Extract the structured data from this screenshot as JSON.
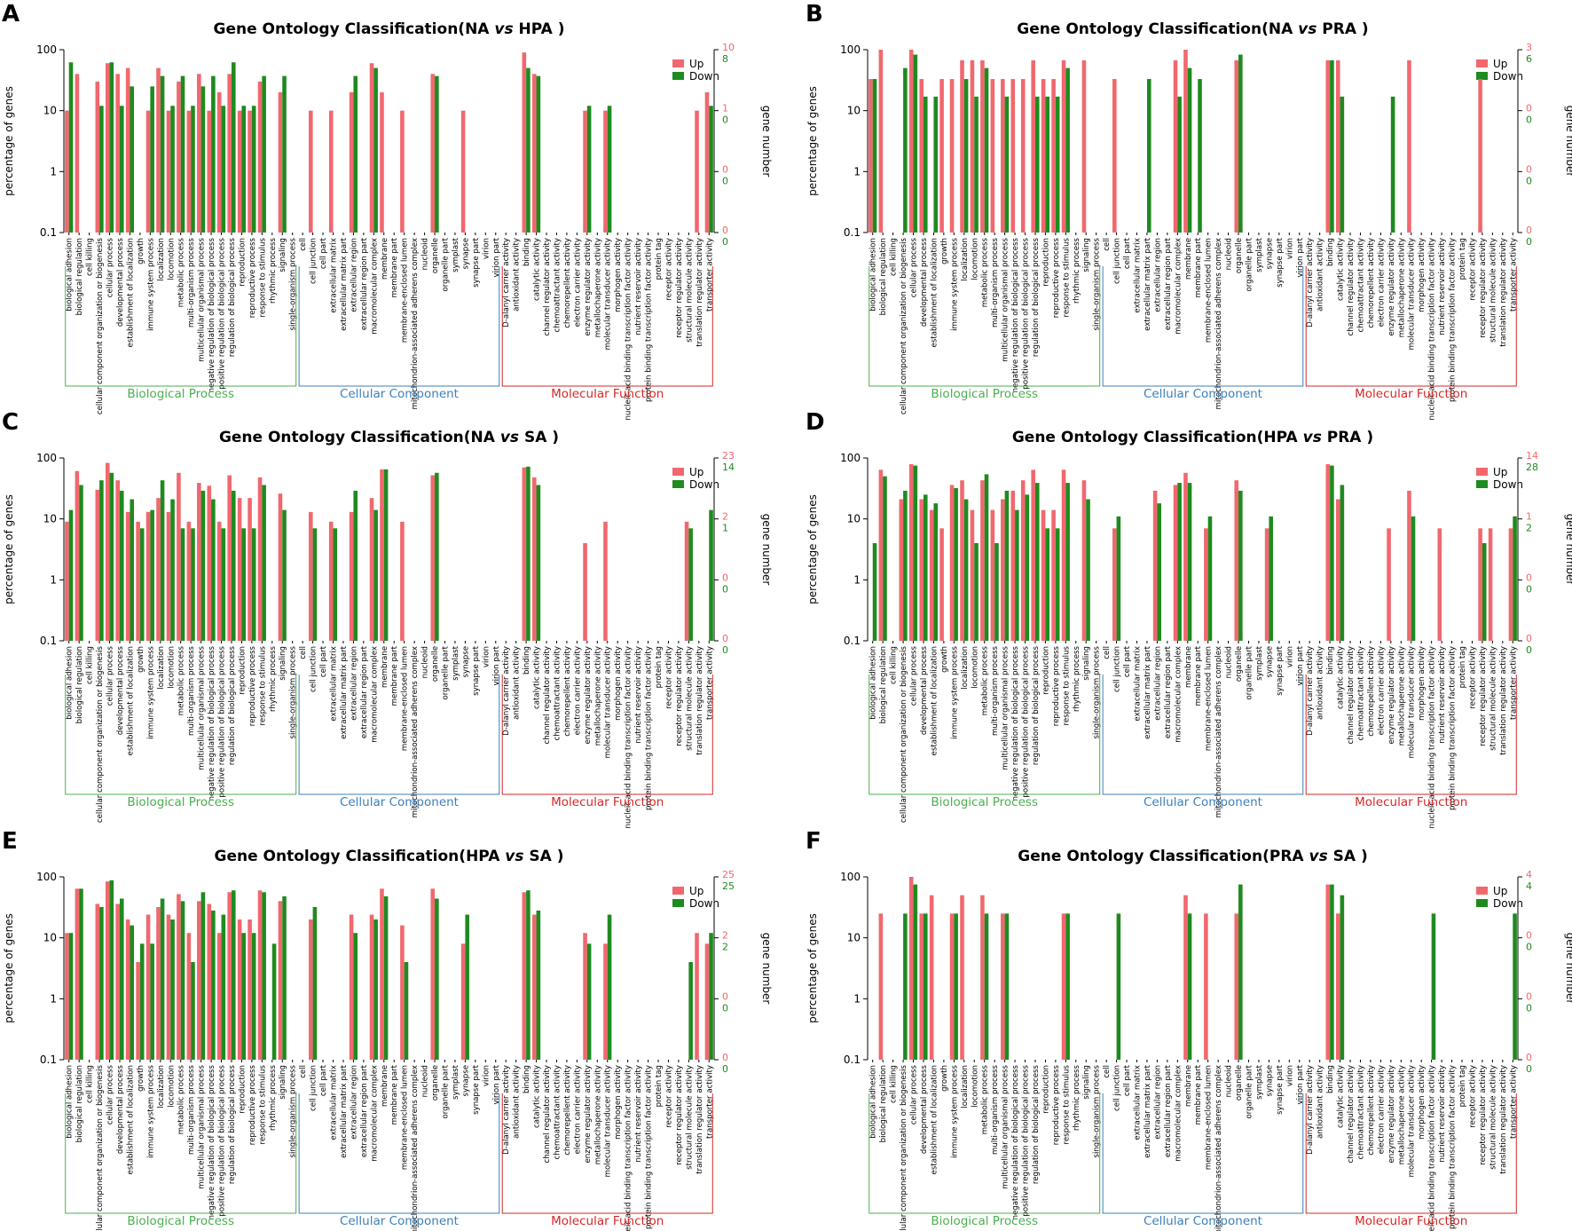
{
  "figure": {
    "colors": {
      "up": "#F0686E",
      "down": "#1F8A1F",
      "bp": "#4CAF50",
      "cc": "#3D7FB8",
      "mf": "#D62728",
      "axis": "#000000"
    },
    "y_axis_label": "percentage of genes",
    "y2_axis_label": "gene number",
    "legend_up": "Up",
    "legend_down": "Down",
    "y_ticks": [
      "100",
      "10",
      "1",
      "0.1"
    ],
    "group_labels": {
      "bp": "Biological Process",
      "cc": "Cellular Component",
      "mf": "Molecular Function"
    }
  },
  "categories": [
    "biological adhesion",
    "biological regulation",
    "cell killing",
    "cellular component organization or biogenesis",
    "cellular process",
    "developmental process",
    "establishment of localization",
    "growth",
    "immune system process",
    "localization",
    "locomotion",
    "metabolic process",
    "multi-organism process",
    "multicellular organismal process",
    "negative regulation of biological process",
    "positive regulation of biological process",
    "regulation of biological process",
    "reproduction",
    "reproductive process",
    "response to stimulus",
    "rhythmic process",
    "signaling",
    "single-organism process",
    "cell",
    "cell junction",
    "cell part",
    "extracellular matrix",
    "extracellular matrix part",
    "extracellular region",
    "extracellular region part",
    "macromolecular complex",
    "membrane",
    "membrane part",
    "membrane-enclosed lumen",
    "mitochondrion-associated adherens complex",
    "nucleoid",
    "organelle",
    "organelle part",
    "symplast",
    "synapse",
    "synapse part",
    "virion",
    "virion part",
    "D-alanyl carrier activity",
    "antioxidant activity",
    "binding",
    "catalytic activity",
    "channel regulator activity",
    "chemoattractant activity",
    "chemorepellent activity",
    "electron carrier activity",
    "enzyme regulator activity",
    "metallochaperone activity",
    "molecular transducer activity",
    "morphogen activity",
    "nucleic acid binding transcription factor activity",
    "nutrient reservoir activity",
    "protein binding transcription factor activity",
    "protein tag",
    "receptor activity",
    "receptor regulator activity",
    "structural molecule activity",
    "translation regulator activity",
    "transporter activity"
  ],
  "chart_data": [
    {
      "type": "bar",
      "panel": "A",
      "title_prefix": "Gene Ontology Classification(",
      "group_a": "NA",
      "vs": "vs",
      "group_b": "HPA",
      "title_suffix": ")",
      "yscale": "log",
      "ylim": [
        0.1,
        100
      ],
      "y2_up_ticks": [
        "10",
        "1",
        "0",
        "0"
      ],
      "y2_down_ticks": [
        "8",
        "0",
        "0",
        "0"
      ],
      "series": [
        {
          "name": "Up",
          "values": [
            10,
            40,
            0,
            30,
            60,
            40,
            50,
            0,
            10,
            50,
            10,
            30,
            10,
            40,
            10,
            20,
            40,
            10,
            10,
            30,
            0,
            20,
            0,
            0,
            10,
            0,
            10,
            0,
            20,
            0,
            60,
            20,
            0,
            10,
            0,
            0,
            40,
            0,
            0,
            10,
            0,
            0,
            0,
            0,
            0,
            90,
            40,
            0,
            0,
            0,
            0,
            10,
            0,
            10,
            0,
            0,
            0,
            0,
            0,
            0,
            0,
            0,
            10,
            20
          ]
        },
        {
          "name": "Down",
          "values": [
            62,
            0,
            0,
            12,
            62,
            12,
            25,
            0,
            25,
            37,
            12,
            37,
            12,
            25,
            37,
            12,
            62,
            12,
            12,
            37,
            0,
            37,
            0,
            0,
            0,
            0,
            0,
            0,
            37,
            0,
            50,
            0,
            0,
            0,
            0,
            0,
            37,
            0,
            0,
            0,
            0,
            0,
            0,
            0,
            0,
            50,
            37,
            0,
            0,
            0,
            0,
            12,
            0,
            12,
            0,
            0,
            0,
            0,
            0,
            0,
            0,
            0,
            0,
            12
          ]
        }
      ]
    },
    {
      "type": "bar",
      "panel": "B",
      "title_prefix": "Gene Ontology Classification(",
      "group_a": "NA",
      "vs": "vs",
      "group_b": "PRA",
      "title_suffix": ")",
      "yscale": "log",
      "ylim": [
        0.1,
        100
      ],
      "y2_up_ticks": [
        "3",
        "0",
        "0",
        "0"
      ],
      "y2_down_ticks": [
        "6",
        "0",
        "0",
        "0"
      ],
      "series": [
        {
          "name": "Up",
          "values": [
            33,
            100,
            0,
            0,
            100,
            33,
            0,
            33,
            33,
            67,
            67,
            67,
            33,
            33,
            33,
            33,
            67,
            33,
            33,
            67,
            0,
            67,
            0,
            0,
            33,
            0,
            0,
            0,
            0,
            0,
            67,
            100,
            0,
            0,
            0,
            0,
            67,
            0,
            0,
            0,
            0,
            0,
            0,
            0,
            0,
            67,
            67,
            0,
            0,
            0,
            0,
            0,
            0,
            67,
            0,
            0,
            0,
            0,
            0,
            0,
            33,
            0,
            0,
            0
          ]
        },
        {
          "name": "Down",
          "values": [
            33,
            0,
            0,
            50,
            83,
            17,
            17,
            0,
            0,
            33,
            17,
            50,
            0,
            17,
            0,
            0,
            17,
            17,
            17,
            50,
            0,
            0,
            0,
            0,
            0,
            0,
            0,
            33,
            0,
            0,
            17,
            50,
            33,
            0,
            0,
            0,
            83,
            0,
            0,
            0,
            0,
            0,
            0,
            0,
            0,
            67,
            17,
            0,
            0,
            0,
            0,
            17,
            0,
            0,
            0,
            0,
            0,
            0,
            0,
            0,
            0,
            0,
            0,
            0
          ]
        }
      ]
    },
    {
      "type": "bar",
      "panel": "C",
      "title_prefix": "Gene Ontology Classification(",
      "group_a": "NA",
      "vs": "vs",
      "group_b": "SA",
      "title_suffix": ")",
      "yscale": "log",
      "ylim": [
        0.1,
        100
      ],
      "y2_up_ticks": [
        "23",
        "2",
        "0",
        "0"
      ],
      "y2_down_ticks": [
        "14",
        "1",
        "0",
        "0"
      ],
      "series": [
        {
          "name": "Up",
          "values": [
            9,
            61,
            0,
            30,
            83,
            43,
            13,
            9,
            13,
            22,
            13,
            57,
            9,
            39,
            35,
            9,
            52,
            22,
            22,
            48,
            0,
            26,
            0,
            0,
            13,
            0,
            9,
            0,
            13,
            0,
            22,
            65,
            0,
            9,
            0,
            0,
            52,
            0,
            0,
            0,
            0,
            0,
            0,
            0,
            0,
            70,
            48,
            0,
            0,
            0,
            0,
            4,
            0,
            9,
            0,
            0,
            0,
            0,
            0,
            0,
            0,
            9,
            0,
            0
          ]
        },
        {
          "name": "Down",
          "values": [
            14,
            36,
            0,
            43,
            57,
            29,
            21,
            7,
            14,
            43,
            21,
            7,
            7,
            29,
            21,
            7,
            29,
            7,
            7,
            36,
            0,
            14,
            0,
            0,
            7,
            0,
            7,
            0,
            29,
            0,
            14,
            65,
            0,
            0,
            0,
            0,
            57,
            0,
            0,
            0,
            0,
            0,
            0,
            0,
            0,
            72,
            36,
            0,
            0,
            0,
            0,
            0,
            0,
            0,
            0,
            0,
            0,
            0,
            0,
            0,
            0,
            7,
            0,
            14
          ]
        }
      ]
    },
    {
      "type": "bar",
      "panel": "D",
      "title_prefix": "Gene Ontology Classification(",
      "group_a": "HPA",
      "vs": "vs",
      "group_b": "PRA",
      "title_suffix": ")",
      "yscale": "log",
      "ylim": [
        0.1,
        100
      ],
      "y2_up_ticks": [
        "14",
        "1",
        "0",
        "0"
      ],
      "y2_down_ticks": [
        "28",
        "2",
        "0",
        "0"
      ],
      "series": [
        {
          "name": "Up",
          "values": [
            0,
            64,
            0,
            21,
            79,
            21,
            14,
            7,
            36,
            43,
            14,
            43,
            14,
            21,
            29,
            43,
            64,
            14,
            14,
            64,
            0,
            43,
            0,
            0,
            7,
            0,
            0,
            0,
            29,
            0,
            36,
            57,
            0,
            7,
            0,
            0,
            43,
            0,
            0,
            7,
            0,
            0,
            0,
            0,
            0,
            79,
            21,
            0,
            0,
            0,
            0,
            7,
            0,
            29,
            0,
            0,
            7,
            0,
            0,
            0,
            7,
            7,
            0,
            7
          ]
        },
        {
          "name": "Down",
          "values": [
            4,
            50,
            0,
            29,
            75,
            25,
            18,
            0,
            32,
            21,
            4,
            54,
            4,
            29,
            14,
            25,
            39,
            7,
            7,
            39,
            0,
            21,
            0,
            0,
            11,
            0,
            0,
            0,
            18,
            0,
            39,
            39,
            0,
            11,
            0,
            0,
            29,
            0,
            0,
            11,
            0,
            0,
            0,
            0,
            0,
            75,
            36,
            0,
            0,
            0,
            0,
            0,
            0,
            11,
            0,
            0,
            0,
            0,
            0,
            0,
            4,
            0,
            0,
            11
          ]
        }
      ]
    },
    {
      "type": "bar",
      "panel": "E",
      "title_prefix": "Gene Ontology Classification(",
      "group_a": "HPA",
      "vs": "vs",
      "group_b": "SA",
      "title_suffix": ")",
      "yscale": "log",
      "ylim": [
        0.1,
        100
      ],
      "y2_up_ticks": [
        "25",
        "2",
        "0",
        "0"
      ],
      "y2_down_ticks": [
        "25",
        "2",
        "0",
        "0"
      ],
      "series": [
        {
          "name": "Up",
          "values": [
            12,
            64,
            0,
            36,
            84,
            36,
            20,
            4,
            24,
            32,
            24,
            52,
            12,
            40,
            36,
            12,
            56,
            20,
            20,
            60,
            0,
            40,
            0,
            0,
            20,
            0,
            0,
            0,
            24,
            0,
            24,
            64,
            0,
            16,
            0,
            0,
            64,
            0,
            0,
            8,
            0,
            0,
            0,
            0,
            0,
            56,
            24,
            0,
            0,
            0,
            0,
            12,
            0,
            8,
            0,
            0,
            0,
            0,
            0,
            0,
            0,
            0,
            12,
            8
          ]
        },
        {
          "name": "Down",
          "values": [
            12,
            64,
            0,
            32,
            88,
            44,
            16,
            8,
            8,
            44,
            20,
            40,
            4,
            56,
            28,
            24,
            60,
            12,
            12,
            56,
            8,
            48,
            0,
            0,
            32,
            0,
            0,
            0,
            12,
            0,
            20,
            48,
            0,
            4,
            0,
            0,
            44,
            0,
            0,
            24,
            0,
            0,
            0,
            0,
            0,
            60,
            28,
            0,
            0,
            0,
            0,
            8,
            0,
            24,
            0,
            0,
            0,
            0,
            0,
            0,
            0,
            4,
            0,
            12
          ]
        }
      ]
    },
    {
      "type": "bar",
      "panel": "F",
      "title_prefix": "Gene Ontology Classification(",
      "group_a": "PRA",
      "vs": "vs",
      "group_b": "SA",
      "title_suffix": ")",
      "yscale": "log",
      "ylim": [
        0.1,
        100
      ],
      "y2_up_ticks": [
        "4",
        "0",
        "0",
        "0"
      ],
      "y2_down_ticks": [
        "4",
        "0",
        "0",
        "0"
      ],
      "series": [
        {
          "name": "Up",
          "values": [
            0,
            25,
            0,
            0,
            100,
            25,
            50,
            0,
            25,
            50,
            0,
            50,
            0,
            25,
            0,
            0,
            0,
            0,
            0,
            25,
            0,
            0,
            0,
            0,
            0,
            0,
            0,
            0,
            0,
            0,
            0,
            50,
            0,
            25,
            0,
            0,
            25,
            0,
            0,
            0,
            0,
            0,
            0,
            0,
            0,
            75,
            25,
            0,
            0,
            0,
            0,
            0,
            0,
            0,
            0,
            0,
            0,
            0,
            0,
            0,
            0,
            0,
            0,
            0
          ]
        },
        {
          "name": "Down",
          "values": [
            0,
            0,
            0,
            25,
            75,
            25,
            0,
            0,
            25,
            0,
            0,
            25,
            0,
            25,
            0,
            0,
            0,
            0,
            0,
            25,
            0,
            0,
            0,
            0,
            25,
            0,
            0,
            0,
            0,
            0,
            0,
            25,
            0,
            0,
            0,
            0,
            75,
            0,
            0,
            0,
            0,
            0,
            0,
            0,
            0,
            75,
            50,
            0,
            0,
            0,
            0,
            0,
            0,
            0,
            0,
            25,
            0,
            0,
            0,
            0,
            0,
            0,
            0,
            25
          ]
        }
      ]
    }
  ]
}
